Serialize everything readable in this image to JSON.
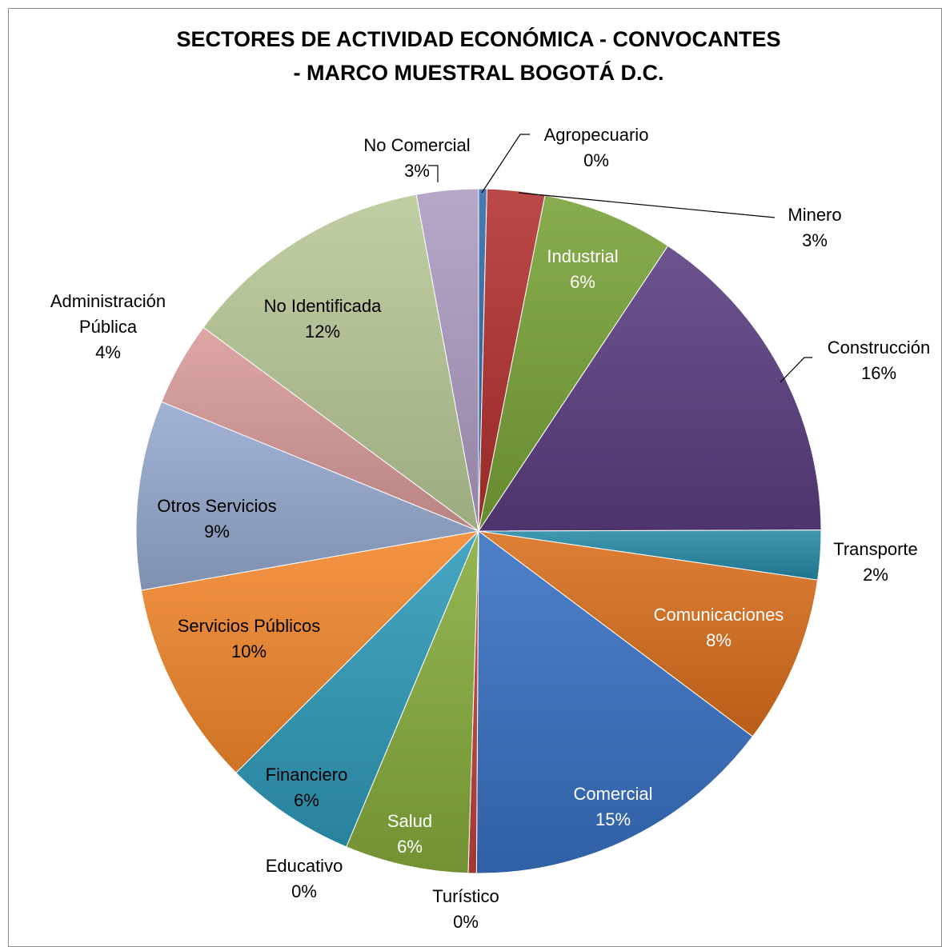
{
  "chart_data": {
    "type": "pie",
    "title_lines": [
      "SECTORES DE ACTIVIDAD ECONÓMICA - CONVOCANTES",
      "- MARCO MUESTRAL BOGOTÁ D.C."
    ],
    "slices": [
      {
        "name": "Agropecuario",
        "label": [
          "Agropecuario"
        ],
        "percent_label": "0%",
        "value": 0.4,
        "color": "#2f6aa8"
      },
      {
        "name": "Minero",
        "label": [
          "Minero"
        ],
        "percent_label": "3%",
        "value": 2.8,
        "color": "#b2302e"
      },
      {
        "name": "Industrial",
        "label": [
          "Industrial"
        ],
        "percent_label": "6%",
        "value": 6.4,
        "color": "#78a236"
      },
      {
        "name": "Construcción",
        "label": [
          "Construcción"
        ],
        "percent_label": "16%",
        "value": 16.1,
        "color": "#5a3d80"
      },
      {
        "name": "Transporte",
        "label": [
          "Transporte"
        ],
        "percent_label": "2%",
        "value": 2.4,
        "color": "#268aa6"
      },
      {
        "name": "Comunicaciones",
        "label": [
          "Comunicaciones"
        ],
        "percent_label": "8%",
        "value": 8.2,
        "color": "#d96d1b"
      },
      {
        "name": "Comercial",
        "label": [
          "Comercial"
        ],
        "percent_label": "15%",
        "value": 15.3,
        "color": "#3770c2"
      },
      {
        "name": "Turístico",
        "label": [
          "Turístico"
        ],
        "percent_label": "0%",
        "value": 0.4,
        "color": "#c0413c"
      },
      {
        "name": "Salud",
        "label": [
          "Salud"
        ],
        "percent_label": "6%",
        "value": 6.0,
        "color": "#86ac3c"
      },
      {
        "name": "Educativo",
        "label": [
          "Educativo"
        ],
        "percent_label": "0%",
        "value": 0.0,
        "color": "#6b4e8c"
      },
      {
        "name": "Financiero",
        "label": [
          "Financiero"
        ],
        "percent_label": "6%",
        "value": 6.4,
        "color": "#2e9ab9"
      },
      {
        "name": "Servicios Públicos",
        "label": [
          "Servicios Públicos"
        ],
        "percent_label": "10%",
        "value": 10.0,
        "color": "#f2872c"
      },
      {
        "name": "Otros Servicios",
        "label": [
          "Otros Servicios"
        ],
        "percent_label": "9%",
        "value": 9.2,
        "color": "#95a9cf"
      },
      {
        "name": "Administración Pública",
        "label": [
          "Administración",
          "Pública"
        ],
        "percent_label": "4%",
        "value": 4.1,
        "color": "#d99b9a"
      },
      {
        "name": "No Identificada",
        "label": [
          "No Identificada"
        ],
        "percent_label": "12%",
        "value": 12.3,
        "color": "#b7c996"
      },
      {
        "name": "No Comercial",
        "label": [
          "No Comercial"
        ],
        "percent_label": "3%",
        "value": 3.0,
        "color": "#ad9bc2"
      }
    ]
  }
}
